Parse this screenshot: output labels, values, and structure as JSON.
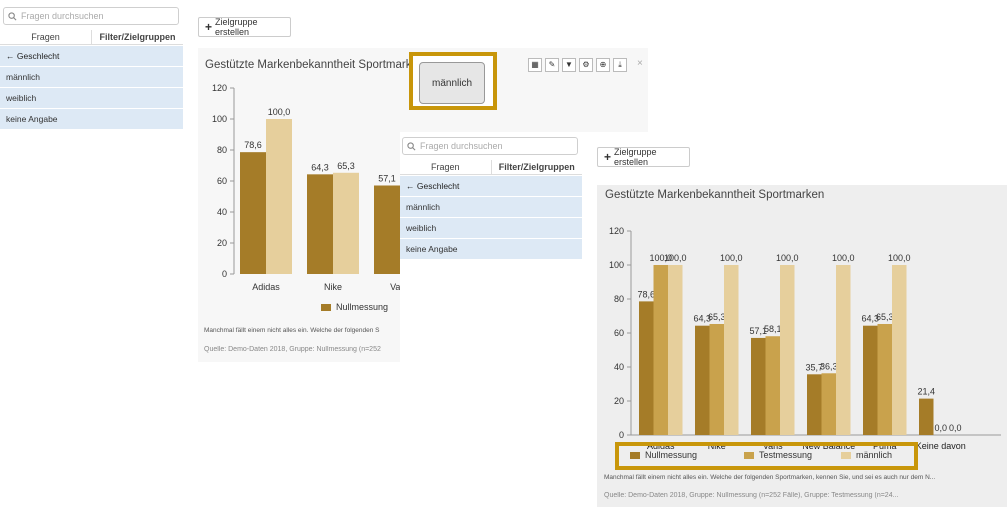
{
  "left_panel": {
    "search_placeholder": "Fragen durchsuchen",
    "tab_questions": "Fragen",
    "tab_filters": "Filter/Zielgruppen",
    "items": [
      "← Geschlecht",
      "männlich",
      "weiblich",
      "keine Angabe"
    ]
  },
  "toolbar": {
    "create_group": "Zielgruppe erstellen"
  },
  "popup": {
    "label": "männlich"
  },
  "colors": {
    "null": "#a57c28",
    "test": "#c9a24c",
    "male": "#e6cf9c",
    "highlight": "#c8960a"
  },
  "chart_data": [
    {
      "type": "bar",
      "title": "Gestützte Markenbekanntheit Sportmarken",
      "categories": [
        "Adidas",
        "Nike",
        "Vans"
      ],
      "series": [
        {
          "name": "Nullmessung",
          "values": [
            78.6,
            64.3,
            57.1
          ]
        },
        {
          "name": "",
          "values": [
            100.0,
            65.3,
            null
          ]
        }
      ],
      "data_labels_1": [
        "78,6",
        "64,3",
        "57,1"
      ],
      "data_labels_2": [
        "100,0",
        "65,3",
        ""
      ],
      "yticks": [
        "0",
        "20",
        "40",
        "60",
        "80",
        "100",
        "120"
      ],
      "ylim": [
        0,
        120
      ],
      "legend": [
        "Nullmessung"
      ],
      "note": "Manchmal fällt einem nicht alles ein. Welche der folgenden S",
      "source": "Quelle: Demo-Daten 2018, Gruppe: Nullmessung (n=252"
    },
    {
      "type": "bar",
      "title": "Gestützte Markenbekanntheit Sportmarken",
      "categories": [
        "Adidas",
        "Nike",
        "Vans",
        "New Balance",
        "Puma",
        "Keine davon"
      ],
      "series": [
        {
          "name": "Nullmessung",
          "values": [
            78.6,
            64.3,
            57.1,
            35.7,
            64.3,
            21.4
          ]
        },
        {
          "name": "Testmessung",
          "values": [
            100.0,
            65.3,
            58.1,
            36.3,
            65.3,
            0.0
          ]
        },
        {
          "name": "männlich",
          "values": [
            100.0,
            100.0,
            100.0,
            100.0,
            100.0,
            0.0
          ]
        }
      ],
      "data_labels": [
        [
          "78,6",
          "100,0",
          "100,0"
        ],
        [
          "64,3",
          "65,3",
          "100,0"
        ],
        [
          "57,1",
          "58,1",
          "100,0"
        ],
        [
          "35,7",
          "36,3",
          "100,0"
        ],
        [
          "64,3",
          "65,3",
          "100,0"
        ],
        [
          "21,4",
          "0,0",
          "0,0"
        ]
      ],
      "yticks": [
        "0",
        "20",
        "40",
        "60",
        "80",
        "100",
        "120"
      ],
      "ylim": [
        0,
        120
      ],
      "legend": [
        "Nullmessung",
        "Testmessung",
        "männlich"
      ],
      "legend_placement": "bottom",
      "note": "Manchmal fällt einem nicht alles ein. Welche der folgenden Sportmarken, kennen Sie, und sei es auch nur dem N...",
      "source": "Quelle: Demo-Daten 2018, Gruppe: Nullmessung (n=252 Fälle), Gruppe: Testmessung (n=24..."
    }
  ]
}
